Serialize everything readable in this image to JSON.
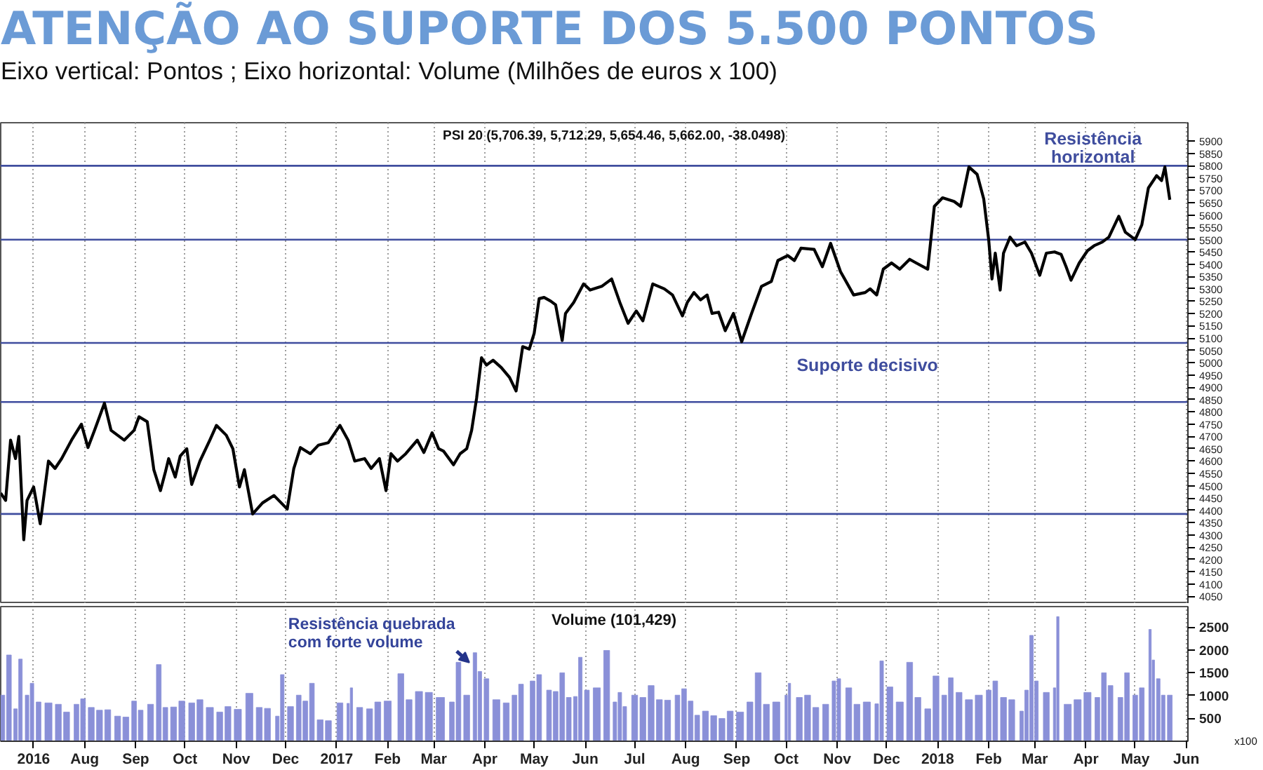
{
  "chart_data": [
    {
      "type": "line",
      "title": "ATENÇÃO AO SUPORTE DOS 5.500 PONTOS",
      "subtitle": "Eixo vertical: Pontos ; Eixo horizontal: Volume (Milhões de euros x 100)",
      "x": [
        "2016-06-11",
        "2016-06-14",
        "2016-06-17",
        "2016-06-20",
        "2016-06-22",
        "2016-06-25",
        "2016-06-27",
        "2016-07-01",
        "2016-07-05",
        "2016-07-10",
        "2016-07-14",
        "2016-07-18",
        "2016-07-24",
        "2016-07-30",
        "2016-08-03",
        "2016-08-07",
        "2016-08-13",
        "2016-08-17",
        "2016-08-25",
        "2016-08-31",
        "2016-09-03",
        "2016-09-08",
        "2016-09-12",
        "2016-09-16",
        "2016-09-19",
        "2016-09-21",
        "2016-09-25",
        "2016-09-28",
        "2016-10-02",
        "2016-10-05",
        "2016-10-10",
        "2016-10-16",
        "2016-10-20",
        "2016-10-26",
        "2016-10-30",
        "2016-11-03",
        "2016-11-06",
        "2016-11-11",
        "2016-11-17",
        "2016-11-24",
        "2016-12-02",
        "2016-12-06",
        "2016-12-10",
        "2016-12-16",
        "2016-12-21",
        "2016-12-27",
        "2017-01-03",
        "2017-01-08",
        "2017-01-12",
        "2017-01-18",
        "2017-01-22",
        "2017-01-27",
        "2017-01-31",
        "2017-02-03",
        "2017-02-07",
        "2017-02-12",
        "2017-02-19",
        "2017-02-23",
        "2017-02-28",
        "2017-03-04",
        "2017-03-07",
        "2017-03-13",
        "2017-03-17",
        "2017-03-21",
        "2017-03-24",
        "2017-03-27",
        "2017-03-30",
        "2017-04-02",
        "2017-04-06",
        "2017-04-11",
        "2017-04-16",
        "2017-04-20",
        "2017-04-24",
        "2017-04-28",
        "2017-05-01",
        "2017-05-04",
        "2017-05-07",
        "2017-05-11",
        "2017-05-14",
        "2017-05-18",
        "2017-05-20",
        "2017-05-25",
        "2017-05-31",
        "2017-06-04",
        "2017-06-11",
        "2017-06-17",
        "2017-06-22",
        "2017-06-27",
        "2017-07-02",
        "2017-07-06",
        "2017-07-12",
        "2017-07-19",
        "2017-07-24",
        "2017-07-30",
        "2017-08-02",
        "2017-08-06",
        "2017-08-10",
        "2017-08-14",
        "2017-08-17",
        "2017-08-21",
        "2017-08-25",
        "2017-08-30",
        "2017-09-04",
        "2017-09-10",
        "2017-09-16",
        "2017-09-22",
        "2017-09-26",
        "2017-10-02",
        "2017-10-06",
        "2017-10-10",
        "2017-10-18",
        "2017-10-23",
        "2017-10-28",
        "2017-11-03",
        "2017-11-11",
        "2017-11-18",
        "2017-11-21",
        "2017-11-25",
        "2017-11-29",
        "2017-12-04",
        "2017-12-09",
        "2017-12-15",
        "2017-12-19",
        "2017-12-26",
        "2017-12-30",
        "2018-01-04",
        "2018-01-11",
        "2018-01-15",
        "2018-01-20",
        "2018-01-25",
        "2018-01-29",
        "2018-02-01",
        "2018-02-03",
        "2018-02-05",
        "2018-02-08",
        "2018-02-10",
        "2018-02-14",
        "2018-02-18",
        "2018-02-23",
        "2018-02-27",
        "2018-03-04",
        "2018-03-08",
        "2018-03-13",
        "2018-03-17",
        "2018-03-20",
        "2018-03-23",
        "2018-03-28",
        "2018-04-02",
        "2018-04-06",
        "2018-04-11",
        "2018-04-15",
        "2018-04-21",
        "2018-04-25",
        "2018-05-01",
        "2018-05-05",
        "2018-05-09",
        "2018-05-14",
        "2018-05-17",
        "2018-05-19",
        "2018-05-22"
      ],
      "series": [
        {
          "color": "#000000",
          "values": [
            4470,
            4440,
            4685,
            4610,
            4700,
            4280,
            4440,
            4495,
            4345,
            4600,
            4570,
            4610,
            4685,
            4750,
            4655,
            4725,
            4835,
            4725,
            4685,
            4725,
            4780,
            4760,
            4565,
            4480,
            4555,
            4610,
            4535,
            4620,
            4650,
            4505,
            4600,
            4685,
            4745,
            4705,
            4650,
            4495,
            4565,
            4385,
            4430,
            4460,
            4405,
            4570,
            4655,
            4630,
            4665,
            4675,
            4745,
            4685,
            4600,
            4610,
            4570,
            4610,
            4480,
            4630,
            4600,
            4630,
            4685,
            4635,
            4715,
            4650,
            4640,
            4585,
            4630,
            4650,
            4725,
            4855,
            5020,
            4990,
            5010,
            4980,
            4940,
            4885,
            5065,
            5055,
            5120,
            5260,
            5265,
            5250,
            5235,
            5090,
            5200,
            5245,
            5320,
            5295,
            5310,
            5340,
            5245,
            5160,
            5210,
            5170,
            5320,
            5300,
            5275,
            5190,
            5245,
            5285,
            5255,
            5275,
            5200,
            5205,
            5130,
            5200,
            5085,
            5200,
            5310,
            5330,
            5415,
            5435,
            5415,
            5465,
            5460,
            5390,
            5485,
            5370,
            5275,
            5285,
            5300,
            5275,
            5380,
            5405,
            5380,
            5420,
            5405,
            5380,
            5635,
            5670,
            5655,
            5635,
            5795,
            5765,
            5665,
            5500,
            5340,
            5445,
            5295,
            5445,
            5510,
            5475,
            5490,
            5445,
            5355,
            5445,
            5450,
            5440,
            5390,
            5335,
            5405,
            5455,
            5475,
            5490,
            5510,
            5595,
            5530,
            5500,
            5560,
            5710,
            5760,
            5740,
            5795,
            5662
          ]
        }
      ],
      "xlim": [
        "2016-06-11",
        "2018-06-02"
      ],
      "xticks": [
        {
          "value": "2016-07-01",
          "label": null
        },
        {
          "value": "2016-08-01",
          "label": null
        },
        {
          "value": "2016-09-01",
          "label": null
        },
        {
          "value": "2016-10-01",
          "label": null
        },
        {
          "value": "2016-11-01",
          "label": null
        },
        {
          "value": "2016-12-01",
          "label": null
        },
        {
          "value": "2017-01-01",
          "label": null
        },
        {
          "value": "2017-02-01",
          "label": null
        },
        {
          "value": "2017-03-01",
          "label": null
        },
        {
          "value": "2017-04-01",
          "label": null
        },
        {
          "value": "2017-05-01",
          "label": null
        },
        {
          "value": "2017-06-01",
          "label": null
        },
        {
          "value": "2017-07-01",
          "label": null
        },
        {
          "value": "2017-08-01",
          "label": null
        },
        {
          "value": "2017-09-01",
          "label": null
        },
        {
          "value": "2017-10-01",
          "label": null
        },
        {
          "value": "2017-11-01",
          "label": null
        },
        {
          "value": "2017-12-01",
          "label": null
        },
        {
          "value": "2018-01-01",
          "label": null
        },
        {
          "value": "2018-02-01",
          "label": null
        },
        {
          "value": "2018-03-01",
          "label": null
        },
        {
          "value": "2018-04-01",
          "label": null
        },
        {
          "value": "2018-05-01",
          "label": null
        },
        {
          "value": "2018-06-01",
          "label": null
        }
      ],
      "ylim": [
        4020,
        5975
      ],
      "yticks": [
        4050,
        4100,
        4150,
        4200,
        4250,
        4300,
        4350,
        4400,
        4450,
        4500,
        4550,
        4600,
        4650,
        4700,
        4750,
        4800,
        4850,
        4900,
        4950,
        5000,
        5050,
        5100,
        5150,
        5200,
        5250,
        5300,
        5350,
        5400,
        5450,
        5500,
        5550,
        5600,
        5650,
        5700,
        5750,
        5800,
        5850,
        5900
      ],
      "tick_labels": "y",
      "grid": "x",
      "ref_lines": [
        {
          "axis": "y",
          "value": 5800,
          "label": "Resistência\nhorizontal",
          "color": "#3f4d9e"
        },
        {
          "axis": "y",
          "value": 5500,
          "color": "#3f4d9e"
        },
        {
          "axis": "y",
          "value": 5080,
          "label": "Suporte decisivo",
          "color": "#3f4d9e"
        },
        {
          "axis": "y",
          "value": 4840,
          "color": "#3f4d9e"
        },
        {
          "axis": "y",
          "value": 4385,
          "color": "#3f4d9e"
        }
      ],
      "annotations": [
        "PSI 20 (5,706.39, 5,712.29, 5,654.46, 5,662.00, -38.0498)"
      ]
    },
    {
      "type": "bar",
      "ylabel": "x100",
      "x": [
        "2016-06-12",
        "2016-06-16",
        "2016-06-20",
        "2016-06-23",
        "2016-06-27",
        "2016-06-30",
        "2016-07-04",
        "2016-07-10",
        "2016-07-16",
        "2016-07-21",
        "2016-07-27",
        "2016-07-31",
        "2016-08-05",
        "2016-08-10",
        "2016-08-15",
        "2016-08-21",
        "2016-08-26",
        "2016-08-31",
        "2016-09-04",
        "2016-09-10",
        "2016-09-15",
        "2016-09-19",
        "2016-09-24",
        "2016-09-29",
        "2016-10-05",
        "2016-10-10",
        "2016-10-16",
        "2016-10-22",
        "2016-10-27",
        "2016-11-02",
        "2016-11-09",
        "2016-11-15",
        "2016-11-20",
        "2016-11-26",
        "2016-11-29",
        "2016-12-04",
        "2016-12-09",
        "2016-12-13",
        "2016-12-17",
        "2016-12-22",
        "2016-12-27",
        "2017-01-03",
        "2017-01-08",
        "2017-01-10",
        "2017-01-15",
        "2017-01-21",
        "2017-01-26",
        "2017-02-01",
        "2017-02-09",
        "2017-02-14",
        "2017-02-20",
        "2017-02-26",
        "2017-03-05",
        "2017-03-12",
        "2017-03-16",
        "2017-03-21",
        "2017-03-26",
        "2017-03-29",
        "2017-04-02",
        "2017-04-08",
        "2017-04-14",
        "2017-04-19",
        "2017-04-23",
        "2017-04-30",
        "2017-05-04",
        "2017-05-10",
        "2017-05-14",
        "2017-05-18",
        "2017-05-22",
        "2017-05-26",
        "2017-05-29",
        "2017-06-02",
        "2017-06-08",
        "2017-06-14",
        "2017-06-19",
        "2017-06-22",
        "2017-06-25",
        "2017-07-01",
        "2017-07-06",
        "2017-07-11",
        "2017-07-16",
        "2017-07-21",
        "2017-07-27",
        "2017-07-31",
        "2017-08-04",
        "2017-08-08",
        "2017-08-13",
        "2017-08-18",
        "2017-08-23",
        "2017-08-28",
        "2017-09-03",
        "2017-09-09",
        "2017-09-14",
        "2017-09-19",
        "2017-09-25",
        "2017-10-01",
        "2017-10-03",
        "2017-10-09",
        "2017-10-14",
        "2017-10-19",
        "2017-10-25",
        "2017-10-30",
        "2017-11-02",
        "2017-11-08",
        "2017-11-13",
        "2017-11-19",
        "2017-11-25",
        "2017-11-28",
        "2017-12-03",
        "2017-12-09",
        "2017-12-15",
        "2017-12-20",
        "2017-12-26",
        "2017-12-31",
        "2018-01-05",
        "2018-01-09",
        "2018-01-14",
        "2018-01-20",
        "2018-01-26",
        "2018-02-01",
        "2018-02-05",
        "2018-02-10",
        "2018-02-15",
        "2018-02-21",
        "2018-02-24",
        "2018-02-27",
        "2018-03-02",
        "2018-03-08",
        "2018-03-13",
        "2018-03-15",
        "2018-03-21",
        "2018-03-27",
        "2018-04-02",
        "2018-04-08",
        "2018-04-12",
        "2018-04-16",
        "2018-04-22",
        "2018-04-26",
        "2018-05-01",
        "2018-05-05",
        "2018-05-10",
        "2018-05-12",
        "2018-05-15",
        "2018-05-18",
        "2018-05-22"
      ],
      "values": [
        1010,
        1890,
        710,
        1800,
        1010,
        1270,
        860,
        840,
        810,
        640,
        810,
        930,
        740,
        680,
        690,
        550,
        530,
        880,
        680,
        810,
        1680,
        740,
        750,
        880,
        840,
        910,
        740,
        640,
        760,
        700,
        1050,
        740,
        720,
        550,
        1460,
        760,
        1010,
        880,
        1270,
        470,
        450,
        840,
        830,
        1170,
        740,
        710,
        860,
        880,
        1480,
        910,
        1090,
        1070,
        960,
        860,
        1730,
        1010,
        1940,
        1530,
        1370,
        910,
        840,
        1010,
        1250,
        1320,
        1460,
        1120,
        1090,
        1500,
        960,
        980,
        1840,
        1120,
        1170,
        1990,
        860,
        1070,
        760,
        1010,
        960,
        1220,
        910,
        900,
        1010,
        1150,
        880,
        570,
        660,
        560,
        500,
        660,
        640,
        860,
        1500,
        810,
        860,
        1010,
        1270,
        960,
        1010,
        740,
        810,
        1320,
        1370,
        1170,
        810,
        860,
        820,
        1760,
        1190,
        860,
        1730,
        960,
        710,
        1430,
        1010,
        1390,
        1070,
        910,
        1010,
        1120,
        1320,
        960,
        910,
        660,
        1120,
        2320,
        1320,
        1070,
        1170,
        2730,
        810,
        910,
        1070,
        960,
        1500,
        1220,
        960,
        1500,
        1010,
        1170,
        2450,
        1780,
        1370,
        1010,
        1010
      ],
      "color": "#8a90d8",
      "xlim": [
        "2016-06-11",
        "2018-06-02"
      ],
      "xticks": [
        {
          "value": "2016-07-01",
          "label": "2016"
        },
        {
          "value": "2016-08-01",
          "label": "Aug"
        },
        {
          "value": "2016-09-01",
          "label": "Sep"
        },
        {
          "value": "2016-10-01",
          "label": "Oct"
        },
        {
          "value": "2016-11-01",
          "label": "Nov"
        },
        {
          "value": "2016-12-01",
          "label": "Dec"
        },
        {
          "value": "2017-01-01",
          "label": "2017"
        },
        {
          "value": "2017-02-01",
          "label": "Feb"
        },
        {
          "value": "2017-03-01",
          "label": "Mar"
        },
        {
          "value": "2017-04-01",
          "label": "Apr"
        },
        {
          "value": "2017-05-01",
          "label": "May"
        },
        {
          "value": "2017-06-01",
          "label": "Jun"
        },
        {
          "value": "2017-07-01",
          "label": "Jul"
        },
        {
          "value": "2017-08-01",
          "label": "Aug"
        },
        {
          "value": "2017-09-01",
          "label": "Sep"
        },
        {
          "value": "2017-10-01",
          "label": "Oct"
        },
        {
          "value": "2017-11-01",
          "label": "Nov"
        },
        {
          "value": "2017-12-01",
          "label": "Dec"
        },
        {
          "value": "2018-01-01",
          "label": "2018"
        },
        {
          "value": "2018-02-01",
          "label": "Feb"
        },
        {
          "value": "2018-03-01",
          "label": "Mar"
        },
        {
          "value": "2018-04-01",
          "label": "Apr"
        },
        {
          "value": "2018-05-01",
          "label": "May"
        },
        {
          "value": "2018-06-01",
          "label": "Jun"
        }
      ],
      "ylim": [
        0,
        2950
      ],
      "yticks": [
        500,
        1000,
        1500,
        2000,
        2500
      ],
      "grid": "x",
      "annotations": [
        "Volume (101,429)",
        {
          "text": "Resistência quebrada\ncom forte volume",
          "x": "2017-03-26",
          "y": 1940
        }
      ]
    }
  ]
}
